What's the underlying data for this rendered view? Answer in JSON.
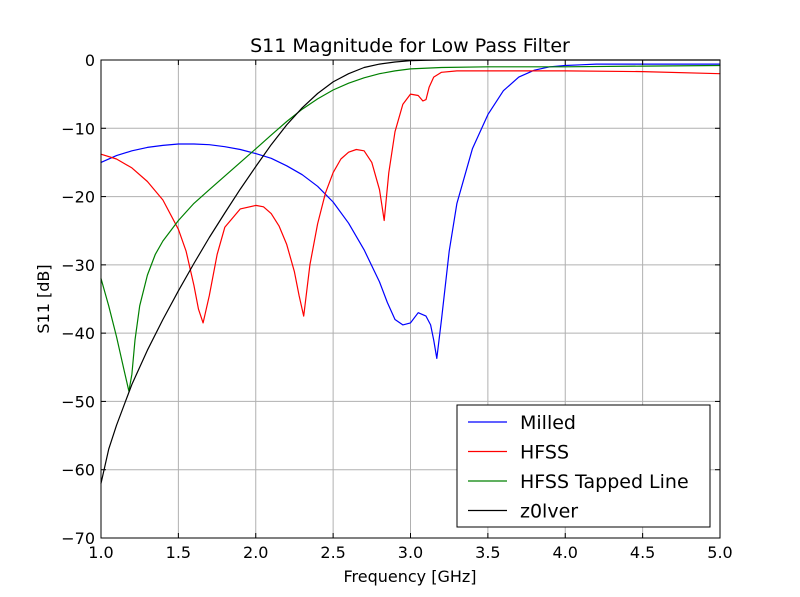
{
  "chart_data": {
    "type": "line",
    "title": "S11 Magnitude for Low Pass Filter",
    "xlabel": "Frequency [GHz]",
    "ylabel": "S11 [dB]",
    "xlim": [
      1.0,
      5.0
    ],
    "ylim": [
      -70,
      0
    ],
    "xticks": [
      1.0,
      1.5,
      2.0,
      2.5,
      3.0,
      3.5,
      4.0,
      4.5,
      5.0
    ],
    "xtick_labels": [
      "1.0",
      "1.5",
      "2.0",
      "2.5",
      "3.0",
      "3.5",
      "4.0",
      "4.5",
      "5.0"
    ],
    "yticks": [
      0,
      -10,
      -20,
      -30,
      -40,
      -50,
      -60,
      -70
    ],
    "ytick_labels": [
      "0",
      "−10",
      "−20",
      "−30",
      "−40",
      "−50",
      "−60",
      "−70"
    ],
    "grid": true,
    "legend_position": "bottom-right",
    "series": [
      {
        "name": "Milled",
        "color": "#0000ff",
        "x": [
          1.0,
          1.1,
          1.2,
          1.3,
          1.4,
          1.5,
          1.6,
          1.7,
          1.8,
          1.9,
          2.0,
          2.1,
          2.2,
          2.3,
          2.4,
          2.5,
          2.6,
          2.7,
          2.8,
          2.85,
          2.9,
          2.95,
          3.0,
          3.05,
          3.1,
          3.13,
          3.15,
          3.17,
          3.2,
          3.25,
          3.3,
          3.4,
          3.5,
          3.6,
          3.7,
          3.8,
          3.9,
          4.0,
          4.1,
          4.2,
          4.5,
          5.0
        ],
        "y": [
          -15.0,
          -14.0,
          -13.3,
          -12.8,
          -12.5,
          -12.3,
          -12.3,
          -12.4,
          -12.7,
          -13.1,
          -13.7,
          -14.4,
          -15.5,
          -16.8,
          -18.5,
          -20.8,
          -23.9,
          -27.8,
          -32.5,
          -35.5,
          -38.0,
          -38.8,
          -38.5,
          -37.0,
          -37.5,
          -38.8,
          -41.0,
          -43.7,
          -38.0,
          -28.0,
          -21.0,
          -13.0,
          -8.0,
          -4.5,
          -2.5,
          -1.5,
          -1.0,
          -0.8,
          -0.7,
          -0.6,
          -0.6,
          -0.6
        ]
      },
      {
        "name": "HFSS",
        "color": "#ff0000",
        "x": [
          1.0,
          1.1,
          1.2,
          1.3,
          1.4,
          1.5,
          1.55,
          1.6,
          1.63,
          1.66,
          1.7,
          1.75,
          1.8,
          1.9,
          2.0,
          2.05,
          2.1,
          2.15,
          2.2,
          2.25,
          2.28,
          2.31,
          2.35,
          2.4,
          2.45,
          2.5,
          2.55,
          2.6,
          2.65,
          2.7,
          2.75,
          2.8,
          2.83,
          2.86,
          2.9,
          2.95,
          3.0,
          3.05,
          3.08,
          3.1,
          3.12,
          3.15,
          3.2,
          3.3,
          3.5,
          4.0,
          4.5,
          5.0
        ],
        "y": [
          -13.8,
          -14.5,
          -15.8,
          -17.8,
          -20.5,
          -24.8,
          -28.0,
          -33.0,
          -36.5,
          -38.5,
          -34.5,
          -28.5,
          -24.5,
          -21.8,
          -21.3,
          -21.5,
          -22.5,
          -24.3,
          -27.0,
          -31.0,
          -34.5,
          -37.5,
          -30.0,
          -24.0,
          -19.5,
          -16.5,
          -14.5,
          -13.5,
          -13.1,
          -13.3,
          -15.0,
          -19.0,
          -23.5,
          -16.5,
          -10.5,
          -6.5,
          -5.0,
          -5.2,
          -6.0,
          -5.8,
          -4.0,
          -2.5,
          -1.8,
          -1.6,
          -1.6,
          -1.6,
          -1.7,
          -2.0
        ]
      },
      {
        "name": "HFSS Tapped Line",
        "color": "#008000",
        "x": [
          1.0,
          1.05,
          1.1,
          1.15,
          1.18,
          1.2,
          1.22,
          1.25,
          1.3,
          1.35,
          1.4,
          1.5,
          1.6,
          1.7,
          1.8,
          1.9,
          2.0,
          2.1,
          2.2,
          2.3,
          2.4,
          2.5,
          2.6,
          2.7,
          2.8,
          2.9,
          3.0,
          3.2,
          3.5,
          4.0,
          4.5,
          5.0
        ],
        "y": [
          -32.0,
          -36.0,
          -40.5,
          -45.5,
          -48.5,
          -46.0,
          -41.0,
          -36.0,
          -31.5,
          -28.5,
          -26.5,
          -23.5,
          -21.0,
          -19.0,
          -17.0,
          -15.0,
          -13.0,
          -11.0,
          -9.0,
          -7.2,
          -5.7,
          -4.4,
          -3.4,
          -2.6,
          -2.0,
          -1.6,
          -1.3,
          -1.1,
          -1.0,
          -1.0,
          -0.9,
          -0.8
        ]
      },
      {
        "name": "z0lver",
        "color": "#000000",
        "x": [
          1.0,
          1.05,
          1.1,
          1.15,
          1.2,
          1.3,
          1.4,
          1.5,
          1.6,
          1.7,
          1.8,
          1.9,
          2.0,
          2.1,
          2.2,
          2.3,
          2.4,
          2.5,
          2.6,
          2.7,
          2.8,
          2.9,
          3.0,
          3.1,
          3.2,
          3.5,
          4.0,
          5.0
        ],
        "y": [
          -62.0,
          -57.0,
          -53.5,
          -50.5,
          -47.5,
          -42.5,
          -38.0,
          -33.8,
          -29.8,
          -26.0,
          -22.4,
          -18.9,
          -15.6,
          -12.4,
          -9.5,
          -7.0,
          -4.9,
          -3.2,
          -2.0,
          -1.1,
          -0.6,
          -0.3,
          -0.1,
          -0.05,
          0.0,
          0.0,
          0.0,
          0.0
        ]
      }
    ]
  }
}
